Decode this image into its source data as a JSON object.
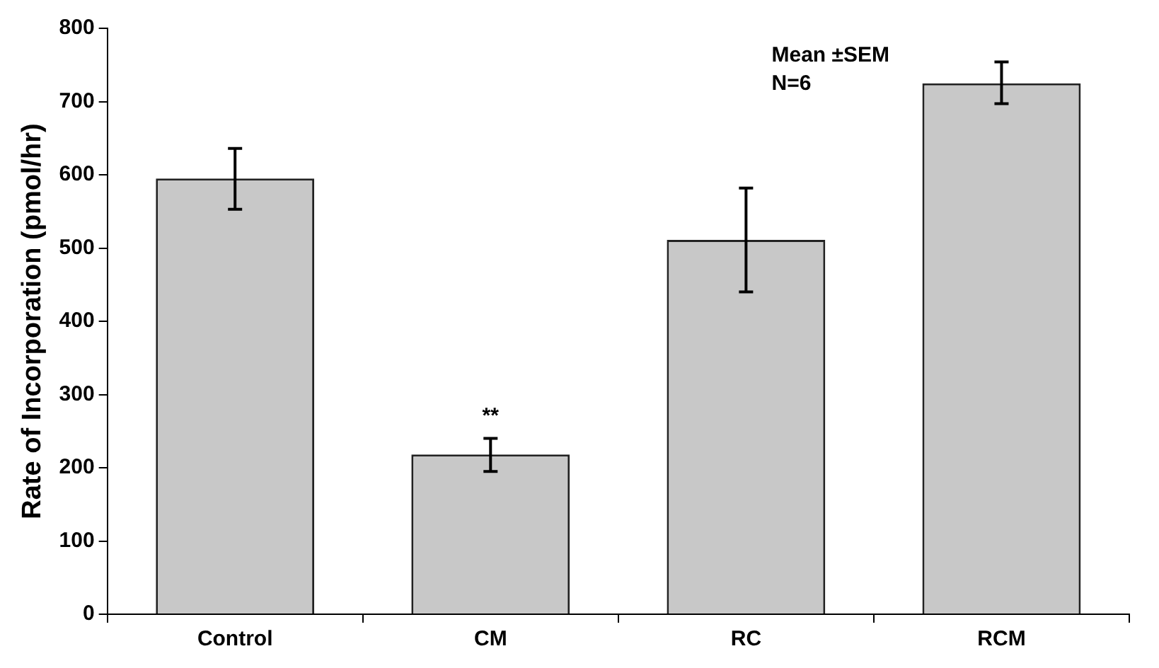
{
  "chart_data": {
    "type": "bar",
    "ylabel": "Rate of Incorporation (pmol/hr)",
    "categories": [
      "Control",
      "CM",
      "RC",
      "RCM"
    ],
    "values": [
      595,
      218,
      511,
      725
    ],
    "errors": [
      [
        553,
        636
      ],
      [
        195,
        240
      ],
      [
        440,
        582
      ],
      [
        697,
        754
      ]
    ],
    "color": "#c8c8c8",
    "ylim": [
      0,
      800
    ],
    "yticks": [
      0,
      100,
      200,
      300,
      400,
      500,
      600,
      700,
      800
    ],
    "grid": false,
    "legend": false,
    "annotations": [
      {
        "text": "**",
        "x": "CM",
        "y": 218
      },
      "Mean ±SEM",
      "N=6"
    ]
  }
}
